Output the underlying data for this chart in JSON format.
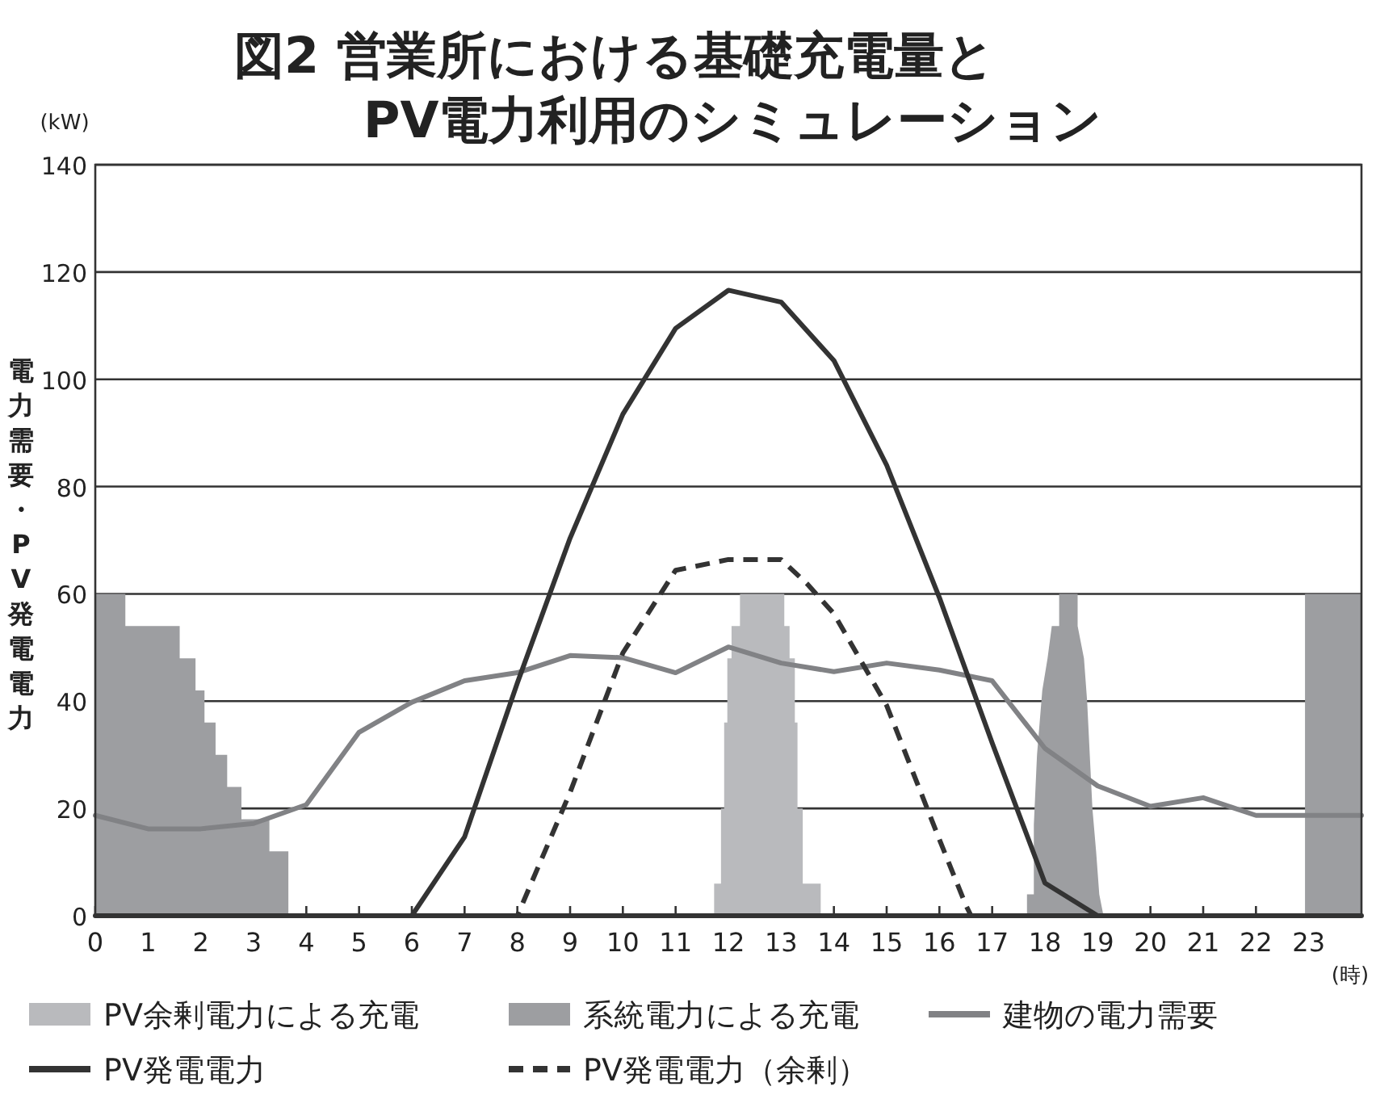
{
  "chart_data": {
    "type": "line",
    "title": "図2 営業所における基礎充電量と\nPV電力利用のシミュレーション",
    "xlabel": "(時)",
    "ylabel": "電力需要・PV発電電力",
    "annotations": [
      "(kW)"
    ],
    "xlim": [
      0,
      24
    ],
    "xticks": [
      0,
      1,
      2,
      3,
      4,
      5,
      6,
      7,
      8,
      9,
      10,
      11,
      12,
      13,
      14,
      15,
      16,
      17,
      18,
      19,
      20,
      21,
      22,
      23
    ],
    "ylim": [
      0,
      140
    ],
    "yticks": [
      0,
      20,
      40,
      60,
      80,
      100,
      120,
      140
    ],
    "grid": "y",
    "legend": "bottom",
    "series": [
      {
        "name": "PV余剰電力による充電",
        "type": "area",
        "color": "#b9babd",
        "x": [
          11.73,
          11.73,
          11.86,
          11.86,
          11.92,
          11.92,
          11.98,
          11.98,
          12.06,
          12.06,
          12.22,
          12.22,
          13.06,
          13.06,
          13.16,
          13.16,
          13.26,
          13.26,
          13.31,
          13.31,
          13.41,
          13.41,
          13.75,
          13.75
        ],
        "values": [
          0,
          6,
          6,
          20,
          20,
          36,
          36,
          48,
          48,
          54,
          54,
          60,
          60,
          54,
          54,
          48,
          48,
          36,
          36,
          20,
          20,
          6,
          6,
          0
        ]
      },
      {
        "name": "系統電力による充電",
        "type": "area",
        "color": "#9d9ea1",
        "x": [
          0,
          0,
          0.57,
          0.57,
          1.6,
          1.6,
          1.9,
          1.9,
          2.07,
          2.07,
          2.28,
          2.28,
          2.5,
          2.5,
          2.77,
          2.77,
          3.3,
          3.3,
          3.66,
          3.66,
          17.66,
          17.66,
          17.79,
          17.79,
          17.85,
          17.95,
          18.05,
          18.13,
          18.27,
          18.27,
          18.62,
          18.62,
          18.74,
          18.8,
          18.85,
          18.9,
          18.97,
          19.03,
          19.11,
          22.93,
          22.93,
          24,
          24
        ],
        "values": [
          0,
          60,
          60,
          54,
          54,
          48,
          48,
          42,
          42,
          36,
          36,
          30,
          30,
          24,
          24,
          18,
          18,
          12,
          12,
          0,
          0,
          4,
          4,
          17,
          30,
          42,
          48,
          54,
          54,
          60,
          60,
          54,
          48,
          40,
          30,
          20,
          12,
          4,
          0,
          0,
          60,
          60,
          0
        ]
      },
      {
        "name": "建物の電力需要",
        "type": "line",
        "color": "#818285",
        "line_style": "solid",
        "x": [
          0,
          1,
          2,
          3,
          4,
          5,
          6,
          7,
          8,
          9,
          10,
          11,
          12,
          13,
          14,
          15,
          16,
          17,
          18,
          19,
          20,
          21,
          22,
          23,
          24
        ],
        "values": [
          18.7,
          16.2,
          16.2,
          17.2,
          20.7,
          34.2,
          39.8,
          43.8,
          45.3,
          48.5,
          48.1,
          45.3,
          50.1,
          47.1,
          45.5,
          47.1,
          45.8,
          43.8,
          31.2,
          24.2,
          20.4,
          22,
          18.7,
          18.7,
          18.7
        ]
      },
      {
        "name": "PV発電電力",
        "type": "line",
        "color": "#333333",
        "line_style": "solid",
        "x": [
          0,
          6,
          7,
          8,
          9,
          10,
          11,
          12,
          13,
          14,
          15,
          16,
          17,
          18,
          19,
          24
        ],
        "values": [
          0,
          0,
          14.7,
          43.4,
          70.4,
          93.5,
          109.5,
          116.6,
          114.4,
          103.5,
          84,
          59.3,
          32.2,
          6.1,
          0,
          0
        ]
      },
      {
        "name": "PV発電電力（余剰）",
        "type": "line",
        "color": "#333333",
        "line_style": "dashed",
        "x": [
          0,
          8,
          9,
          10,
          11,
          12,
          13,
          13.5,
          14,
          15,
          16,
          16.5,
          16.6,
          24
        ],
        "values": [
          0,
          0,
          23,
          49,
          64.4,
          66.4,
          66.4,
          61.8,
          56.3,
          39.2,
          14.2,
          2,
          0,
          0
        ]
      }
    ]
  }
}
